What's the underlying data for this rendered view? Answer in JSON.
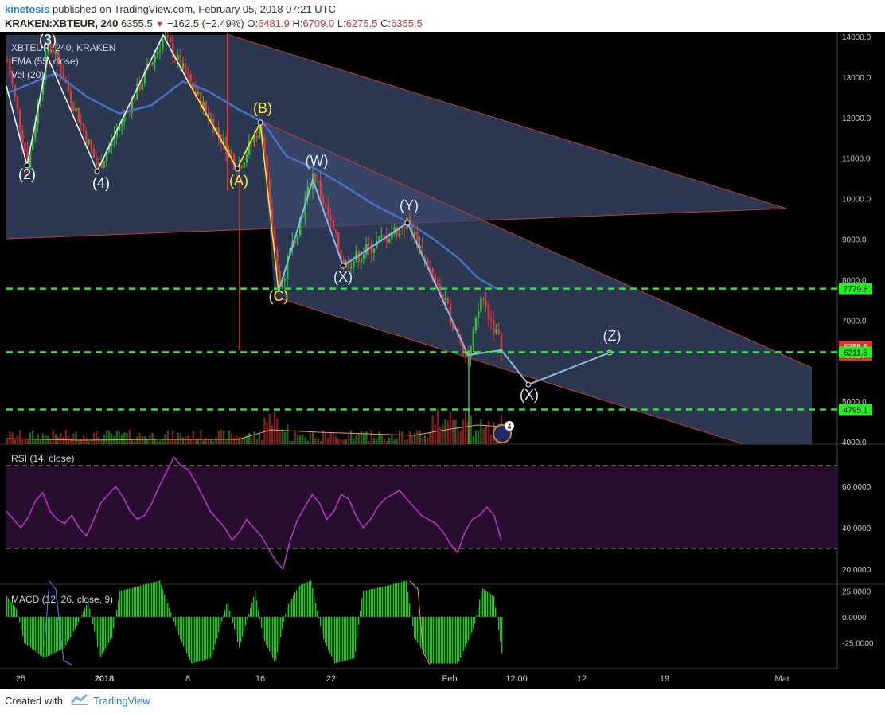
{
  "header": {
    "user": "kinetosis",
    "published": " published on TradingView.com, February 05, 2018 07:21 UTC",
    "symbol": "KRAKEN:XBTEUR, 240",
    "last": "6355.5",
    "change": "−162.5 (−2.49%)",
    "o_label": "O:",
    "o": "6481.9",
    "h_label": "H:",
    "h": "6709.0",
    "l_label": "L:",
    "l": "6275.5",
    "c_label": "C:",
    "c": "6355.5"
  },
  "footer": {
    "created_with": "Created with",
    "brand": "TradingView"
  },
  "colors": {
    "background": "#000000",
    "up_candle": "#39c13b",
    "down_candle": "#e23a3a",
    "ema": "#4a6fc7",
    "channel_fill": "#3b4a6e",
    "channel_line": "#c23b3b",
    "level": "#22ee22",
    "wave_yellow": "#ffe83a",
    "wave_white": "#ffffff",
    "wave_blue": "#8ab8e8",
    "rsi": "#b534c4",
    "macd_hist": "#2dbb2d"
  },
  "chart_data": [
    {
      "type": "candlestick",
      "name": "main",
      "legend": [
        "XBTEUR, 240, KRAKEN",
        "EMA (55, close)",
        "Vol (20)"
      ],
      "x_ticks": [
        "25",
        "2018",
        "8",
        "16",
        "22",
        "Feb",
        "12:00",
        "12",
        "19",
        "Mar"
      ],
      "y_ticks": [
        "14000.0",
        "13000.0",
        "12000.0",
        "11000.0",
        "10000.0",
        "9000.0",
        "8000.0",
        "7000.0",
        "5000.0",
        "4000.0"
      ],
      "ylim": [
        4000,
        14000
      ],
      "price_labels": [
        {
          "text": "7779.6",
          "value": 7779.6,
          "color": "#22ee22",
          "fg": "#000000"
        },
        {
          "text": "6355.5",
          "value": 6355.5,
          "color": "#e23030",
          "fg": "#ffffff"
        },
        {
          "text": "38:57",
          "value": 6140,
          "color": "#e23030",
          "fg": "#ffffff"
        },
        {
          "text": "6211.5",
          "value": 6211.5,
          "color": "#22ee22",
          "fg": "#000000"
        },
        {
          "text": "4795.1",
          "value": 4795.1,
          "color": "#22ee22",
          "fg": "#000000"
        }
      ],
      "levels": [
        7779.6,
        6211.5,
        4795.1
      ],
      "waves": [
        {
          "text": "(3)",
          "color": "#ffffff"
        },
        {
          "text": "(2)",
          "color": "#ffffff"
        },
        {
          "text": "(4)",
          "color": "#ffffff"
        },
        {
          "text": "(B)",
          "color": "#ffe83a"
        },
        {
          "text": "(A)",
          "color": "#ffe83a"
        },
        {
          "text": "(C)",
          "color": "#ffe83a"
        },
        {
          "text": "(W)",
          "color": "#dce8f5"
        },
        {
          "text": "(X)",
          "color": "#dce8f5"
        },
        {
          "text": "(Y)",
          "color": "#dce8f5"
        },
        {
          "text": "(X)",
          "color": "#dce8f5"
        },
        {
          "text": "(Z)",
          "color": "#dce8f5"
        }
      ],
      "badge": "4",
      "candles": "generated procedurally following wave path 13400→10800→14000→10750→11850→7700→10650→8350→9420→6060→7600→6355"
    },
    {
      "type": "line",
      "name": "RSI (14, close)",
      "y_ticks": [
        "60.0000",
        "40.0000",
        "20.0000"
      ],
      "ylim": [
        10,
        80
      ],
      "bands": [
        70,
        30
      ],
      "values": [
        48,
        44,
        40,
        45,
        53,
        57,
        48,
        44,
        42,
        46,
        40,
        36,
        44,
        52,
        56,
        60,
        55,
        48,
        44,
        46,
        52,
        60,
        67,
        74,
        70,
        68,
        62,
        55,
        48,
        44,
        40,
        34,
        38,
        44,
        40,
        36,
        30,
        24,
        20,
        34,
        44,
        50,
        56,
        52,
        44,
        48,
        56,
        54,
        46,
        40,
        44,
        50,
        54,
        56,
        58,
        54,
        50,
        46,
        44,
        42,
        38,
        32,
        28,
        38,
        44,
        46,
        50,
        46,
        34
      ]
    },
    {
      "type": "histogram",
      "name": "MACD (12, 26, close, 9)",
      "y_ticks": [
        "25.0000",
        "0.0000",
        "-25.0000"
      ],
      "ylim": [
        -45,
        28
      ]
    }
  ]
}
